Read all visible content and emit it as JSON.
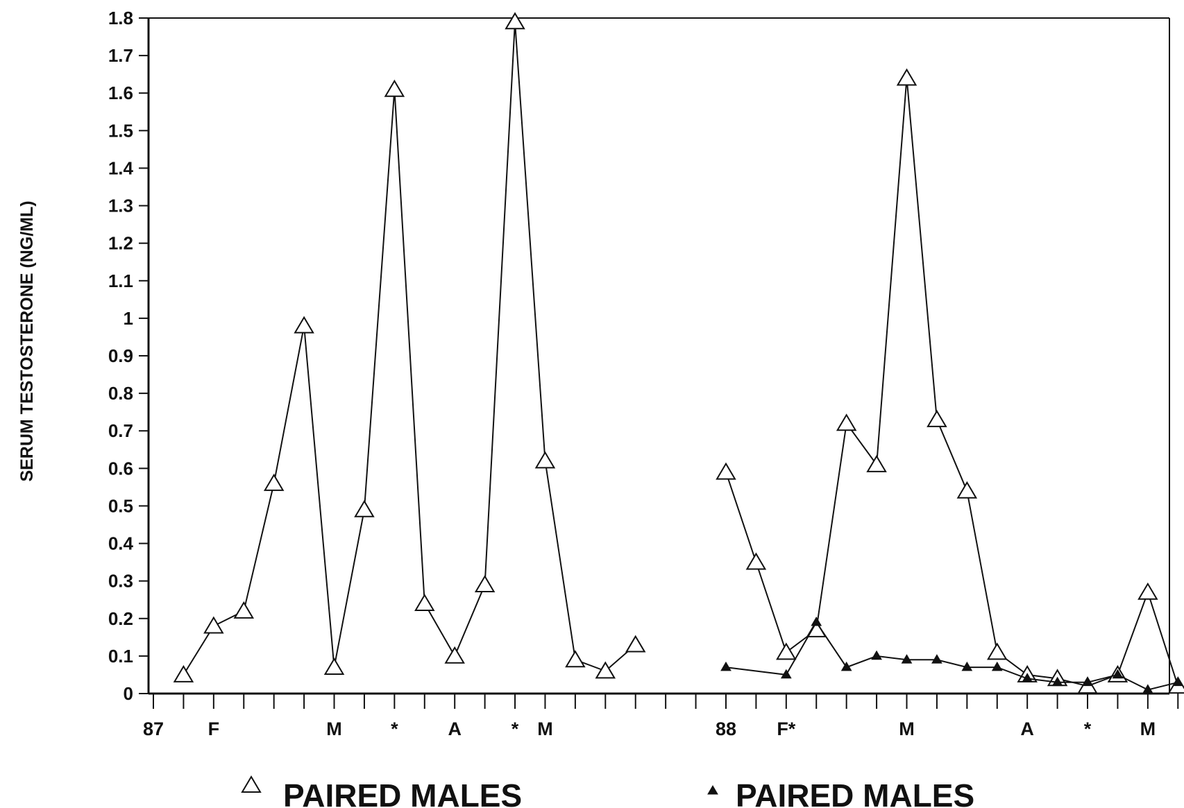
{
  "chart_data": {
    "type": "line",
    "title": "",
    "ylabel": "SERUM TESTOSTERONE (NG/ML)",
    "xlabel": "",
    "ylim": [
      0,
      1.8
    ],
    "yticks": [
      "0",
      "0.1",
      "0.2",
      "0.3",
      "0.4",
      "0.5",
      "0.6",
      "0.7",
      "0.8",
      "0.9",
      "1",
      "1.1",
      "1.2",
      "1.3",
      "1.4",
      "1.5",
      "1.6",
      "1.7",
      "1.8"
    ],
    "x_range": [
      0,
      34
    ],
    "x_tick_count": 35,
    "x_labels": [
      {
        "pos": 0,
        "text": "87"
      },
      {
        "pos": 2,
        "text": "F"
      },
      {
        "pos": 6,
        "text": "M"
      },
      {
        "pos": 8,
        "text": "*"
      },
      {
        "pos": 10,
        "text": "A"
      },
      {
        "pos": 12,
        "text": "*"
      },
      {
        "pos": 13,
        "text": "M"
      },
      {
        "pos": 19,
        "text": "88"
      },
      {
        "pos": 21,
        "text": "F*"
      },
      {
        "pos": 25,
        "text": "M"
      },
      {
        "pos": 29,
        "text": "A"
      },
      {
        "pos": 31,
        "text": "*"
      },
      {
        "pos": 33,
        "text": "M"
      }
    ],
    "grid": false,
    "series": [
      {
        "name": "PAIRED MALES",
        "marker": "open-triangle",
        "segments": [
          [
            [
              1,
              0.05
            ],
            [
              2,
              0.18
            ],
            [
              3,
              0.22
            ],
            [
              4,
              0.56
            ],
            [
              5,
              0.98
            ],
            [
              6,
              0.07
            ],
            [
              7,
              0.49
            ],
            [
              8,
              1.61
            ],
            [
              9,
              0.24
            ],
            [
              10,
              0.1
            ],
            [
              11,
              0.29
            ],
            [
              12,
              1.79
            ],
            [
              13,
              0.62
            ],
            [
              14,
              0.09
            ],
            [
              15,
              0.06
            ],
            [
              16,
              0.13
            ]
          ],
          [
            [
              19,
              0.59
            ],
            [
              20,
              0.35
            ],
            [
              21,
              0.11
            ],
            [
              22,
              0.17
            ],
            [
              23,
              0.72
            ],
            [
              24,
              0.61
            ],
            [
              25,
              1.64
            ],
            [
              26,
              0.73
            ],
            [
              27,
              0.54
            ],
            [
              28,
              0.11
            ],
            [
              29,
              0.05
            ],
            [
              30,
              0.04
            ],
            [
              31,
              0.02
            ],
            [
              32,
              0.05
            ],
            [
              33,
              0.27
            ],
            [
              34,
              0.02
            ]
          ]
        ]
      },
      {
        "name": "PAIRED MALES",
        "marker": "filled-triangle",
        "segments": [
          [
            [
              19,
              0.07
            ],
            [
              21,
              0.05
            ],
            [
              22,
              0.19
            ],
            [
              23,
              0.07
            ],
            [
              24,
              0.1
            ],
            [
              25,
              0.09
            ],
            [
              26,
              0.09
            ],
            [
              27,
              0.07
            ],
            [
              28,
              0.07
            ],
            [
              29,
              0.04
            ],
            [
              30,
              0.03
            ],
            [
              31,
              0.03
            ],
            [
              32,
              0.05
            ],
            [
              33,
              0.01
            ],
            [
              34,
              0.03
            ]
          ]
        ]
      }
    ],
    "legend": {
      "placement": "bottom",
      "entries": [
        {
          "label": "PAIRED MALES",
          "marker": "open-triangle"
        },
        {
          "label": "PAIRED MALES",
          "marker": "filled-triangle"
        }
      ]
    }
  }
}
